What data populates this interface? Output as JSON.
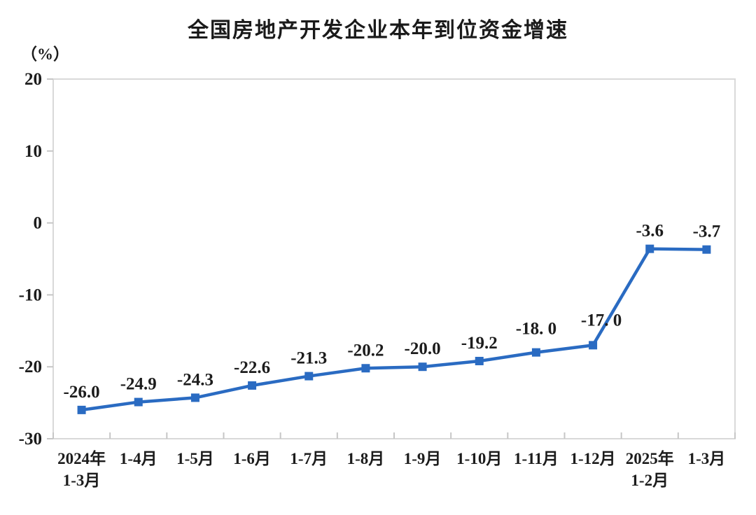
{
  "header": {
    "title": "全国房地产开发企业本年到位资金增速",
    "unit_label": "（%）"
  },
  "chart_data": {
    "type": "line",
    "title": "全国房地产开发企业本年到位资金增速",
    "ylabel": "（%）",
    "categories": [
      "2024年\n1-3月",
      "1-4月",
      "1-5月",
      "1-6月",
      "1-7月",
      "1-8月",
      "1-9月",
      "1-10月",
      "1-11月",
      "1-12月",
      "2025年\n1-2月",
      "1-3月"
    ],
    "values": [
      -26.0,
      -24.9,
      -24.3,
      -22.6,
      -21.3,
      -20.2,
      -20.0,
      -19.2,
      -18.0,
      -17.0,
      -3.6,
      -3.7
    ],
    "data_labels": [
      "-26.0",
      "-24.9",
      "-24.3",
      "-22.6",
      "-21.3",
      "-20.2",
      "-20.0",
      "-19.2",
      "-18. 0",
      "-17. 0",
      "-3.6",
      "-3.7"
    ],
    "ylim": [
      -30,
      20
    ],
    "yticks": [
      20,
      10,
      0,
      -10,
      -20,
      -30
    ],
    "grid": false,
    "legend": "none",
    "marker": "square",
    "line_color": "#2a6bc2",
    "frame_color": "#d9d9d9",
    "tick_color": "#c6c6c6",
    "text_color": "#1c1c1c"
  }
}
